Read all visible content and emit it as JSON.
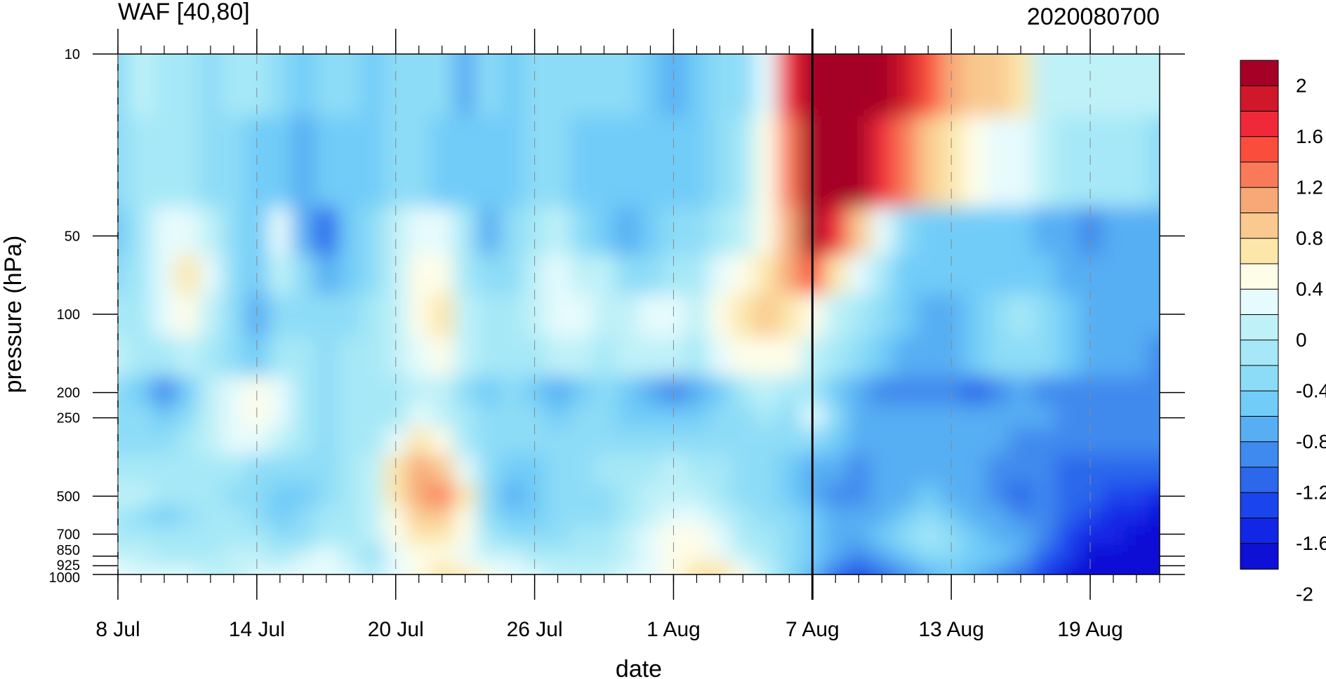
{
  "chart_data": {
    "type": "heatmap",
    "title": "WAF [40,80]",
    "subtitle": "2020080700",
    "xlabel": "date",
    "ylabel": "pressure (hPa)",
    "x_ticks": [
      "8 Jul",
      "14 Jul",
      "20 Jul",
      "26 Jul",
      "1 Aug",
      "7 Aug",
      "13 Aug",
      "19 Aug"
    ],
    "x_range": [
      "8 Jul",
      "22 Aug"
    ],
    "y_ticks": [
      10,
      50,
      100,
      200,
      250,
      500,
      700,
      850,
      925,
      1000
    ],
    "y_range": [
      1000,
      10
    ],
    "y_scale": "log",
    "vertical_line_at": "7 Aug",
    "colorbar": {
      "labels": [
        "2",
        "1.6",
        "1.2",
        "0.8",
        "0.4",
        "0",
        "-0.4",
        "-0.8",
        "-1.2",
        "-1.6",
        "-2"
      ],
      "colors": [
        "#a50026",
        "#d0182a",
        "#f0293a",
        "#fb4d3c",
        "#f97a58",
        "#f7a877",
        "#f9c98f",
        "#fce6aa",
        "#fefde8",
        "#e6fbfd",
        "#bff1f8",
        "#a6e8f7",
        "#8ddcf7",
        "#71ccf8",
        "#57aef3",
        "#3f8aee",
        "#2c67ec",
        "#1b45ec",
        "#1226e6",
        "#0f10d6"
      ]
    },
    "field": {
      "note": "values in data units; rows by pressure level, columns by day",
      "levels": [
        10,
        30,
        50,
        70,
        100,
        150,
        200,
        250,
        300,
        400,
        500,
        600,
        700,
        850,
        925,
        1000
      ],
      "days": [
        "8 Jul",
        "9 Jul",
        "10 Jul",
        "11 Jul",
        "12 Jul",
        "13 Jul",
        "14 Jul",
        "15 Jul",
        "16 Jul",
        "17 Jul",
        "18 Jul",
        "19 Jul",
        "20 Jul",
        "21 Jul",
        "22 Jul",
        "23 Jul",
        "24 Jul",
        "25 Jul",
        "26 Jul",
        "27 Jul",
        "28 Jul",
        "29 Jul",
        "30 Jul",
        "31 Jul",
        "1 Aug",
        "2 Aug",
        "3 Aug",
        "4 Aug",
        "5 Aug",
        "6 Aug",
        "7 Aug",
        "8 Aug",
        "9 Aug",
        "10 Aug",
        "11 Aug",
        "12 Aug",
        "13 Aug",
        "14 Aug",
        "15 Aug",
        "16 Aug",
        "17 Aug",
        "18 Aug",
        "19 Aug",
        "20 Aug",
        "21 Aug",
        "22 Aug"
      ],
      "values": [
        [
          -0.4,
          -0.1,
          -0.3,
          -0.3,
          -0.4,
          -0.3,
          -0.3,
          -0.5,
          -0.6,
          -0.5,
          -0.5,
          -0.6,
          -0.4,
          -0.4,
          -0.5,
          -0.8,
          -0.5,
          -0.6,
          -0.5,
          -0.4,
          -0.4,
          -0.4,
          -0.5,
          -0.7,
          -0.9,
          -0.6,
          -0.5,
          -0.4,
          0.2,
          1.6,
          2.3,
          2.4,
          2.4,
          2.2,
          1.8,
          1.3,
          1.0,
          0.8,
          0.7,
          0.5,
          0.0,
          -0.1,
          -0.1,
          -0.1,
          -0.1,
          -0.1
        ],
        [
          -0.5,
          -0.2,
          -0.2,
          -0.3,
          -0.4,
          -0.5,
          -0.6,
          -0.6,
          -0.9,
          -0.7,
          -0.6,
          -0.6,
          -0.4,
          -0.5,
          -0.6,
          -0.6,
          -0.6,
          -0.7,
          -0.5,
          -0.5,
          -0.6,
          -0.7,
          -0.7,
          -0.7,
          -0.7,
          -0.6,
          -0.4,
          -0.2,
          0.3,
          1.2,
          2.2,
          2.3,
          2.2,
          1.6,
          1.2,
          0.8,
          0.5,
          0.3,
          0.2,
          0.1,
          -0.1,
          -0.2,
          -0.2,
          -0.3,
          -0.3,
          -0.4
        ],
        [
          -0.6,
          -0.2,
          0.1,
          0.2,
          0.0,
          -0.4,
          -0.6,
          0.2,
          -0.8,
          -1.2,
          -0.7,
          -0.5,
          -0.1,
          0.2,
          0.1,
          -0.3,
          -0.8,
          -0.5,
          -0.3,
          0.0,
          -0.4,
          -0.6,
          -0.9,
          -0.7,
          -0.5,
          -0.4,
          -0.3,
          0.0,
          0.4,
          1.0,
          2.2,
          1.5,
          0.8,
          0.2,
          -0.4,
          -0.6,
          -0.7,
          -0.7,
          -0.6,
          -0.7,
          -0.8,
          -0.9,
          -1.0,
          -0.9,
          -0.9,
          -0.9
        ],
        [
          -0.4,
          -0.2,
          0.2,
          0.5,
          0.1,
          -0.4,
          -0.7,
          -0.1,
          -0.5,
          -0.8,
          -0.6,
          -0.4,
          -0.1,
          0.3,
          0.4,
          -0.2,
          -0.5,
          -0.4,
          -0.1,
          0.1,
          0.0,
          -0.1,
          -0.5,
          -0.4,
          -0.3,
          -0.2,
          0.1,
          0.3,
          0.6,
          1.0,
          1.4,
          0.6,
          0.1,
          -0.3,
          -0.6,
          -0.7,
          -0.7,
          -0.6,
          -0.6,
          -0.6,
          -0.7,
          -0.8,
          -0.9,
          -0.9,
          -0.9,
          -0.9
        ],
        [
          -0.2,
          -0.2,
          0.1,
          0.4,
          0.0,
          -0.5,
          -0.9,
          -0.4,
          -0.4,
          -0.5,
          -0.4,
          -0.3,
          -0.1,
          0.3,
          0.6,
          0.0,
          -0.3,
          -0.3,
          0.0,
          0.1,
          0.1,
          0.0,
          -0.1,
          0.1,
          0.2,
          0.0,
          0.3,
          0.6,
          0.7,
          0.6,
          0.3,
          0.0,
          -0.2,
          -0.5,
          -0.7,
          -0.8,
          -0.8,
          -0.6,
          -0.4,
          -0.2,
          -0.5,
          -0.7,
          -0.8,
          -0.9,
          -0.9,
          -0.9
        ],
        [
          -0.1,
          -0.3,
          -0.2,
          0.0,
          -0.2,
          -0.4,
          -0.6,
          -0.3,
          -0.3,
          -0.4,
          -0.3,
          -0.3,
          -0.1,
          0.1,
          0.3,
          -0.1,
          -0.3,
          -0.3,
          -0.2,
          -0.1,
          -0.1,
          -0.2,
          -0.1,
          0.0,
          0.0,
          -0.2,
          0.1,
          0.3,
          0.4,
          0.3,
          0.0,
          -0.2,
          -0.4,
          -0.6,
          -0.8,
          -0.9,
          -0.8,
          -0.7,
          -0.5,
          -0.4,
          -0.5,
          -0.7,
          -0.8,
          -0.9,
          -0.9,
          -1.0
        ],
        [
          -0.4,
          -0.7,
          -1.1,
          -0.6,
          -0.1,
          0.1,
          0.3,
          0.1,
          -0.2,
          -0.5,
          -0.3,
          -0.2,
          -0.2,
          -0.1,
          -0.1,
          -0.4,
          -0.6,
          -0.5,
          -0.6,
          -0.9,
          -0.6,
          -0.5,
          -0.6,
          -0.8,
          -1.1,
          -0.8,
          -0.6,
          -0.3,
          -0.1,
          -0.2,
          -0.2,
          -0.7,
          -0.9,
          -1.0,
          -1.0,
          -1.0,
          -1.1,
          -1.2,
          -1.0,
          -0.9,
          -1.0,
          -1.1,
          -1.1,
          -1.1,
          -1.0,
          -1.1
        ],
        [
          -0.5,
          -0.5,
          -0.6,
          -0.4,
          -0.1,
          0.2,
          0.3,
          0.2,
          -0.2,
          -0.4,
          -0.3,
          -0.2,
          -0.2,
          0.2,
          0.0,
          -0.3,
          -0.5,
          -0.4,
          -0.5,
          -0.6,
          -0.5,
          -0.5,
          -0.6,
          -0.6,
          -0.7,
          -0.6,
          -0.5,
          -0.4,
          -0.3,
          -0.4,
          0.1,
          -0.5,
          -0.8,
          -0.9,
          -0.9,
          -0.9,
          -0.9,
          -0.9,
          -0.9,
          -0.9,
          -0.9,
          -1.0,
          -1.0,
          -1.0,
          -1.0,
          -1.0
        ],
        [
          -0.4,
          -0.4,
          -0.4,
          -0.3,
          -0.1,
          0.1,
          0.1,
          -0.1,
          -0.3,
          -0.4,
          -0.3,
          -0.2,
          0.2,
          0.6,
          0.4,
          -0.2,
          -0.5,
          -0.4,
          -0.4,
          -0.5,
          -0.4,
          -0.4,
          -0.5,
          -0.5,
          -0.5,
          -0.5,
          -0.4,
          -0.4,
          -0.4,
          -0.5,
          -0.5,
          -0.7,
          -0.9,
          -0.9,
          -0.8,
          -0.8,
          -0.8,
          -0.8,
          -0.9,
          -1.0,
          -1.0,
          -1.1,
          -1.1,
          -1.1,
          -1.1,
          -1.1
        ],
        [
          -0.2,
          -0.2,
          -0.2,
          -0.2,
          -0.2,
          -0.3,
          -0.4,
          -0.5,
          -0.5,
          -0.4,
          -0.2,
          -0.1,
          0.5,
          0.9,
          0.8,
          0.2,
          -0.4,
          -0.6,
          -0.6,
          -0.5,
          -0.4,
          -0.3,
          -0.3,
          -0.2,
          -0.1,
          -0.2,
          -0.3,
          -0.4,
          -0.5,
          -0.6,
          -0.8,
          -0.9,
          -1.0,
          -0.9,
          -0.8,
          -0.8,
          -0.8,
          -0.9,
          -1.0,
          -1.1,
          -1.1,
          -1.2,
          -1.2,
          -1.2,
          -1.2,
          -1.2
        ],
        [
          -0.1,
          -0.1,
          -0.2,
          -0.2,
          -0.3,
          -0.5,
          -0.5,
          -0.6,
          -0.6,
          -0.5,
          -0.2,
          -0.1,
          0.6,
          1.0,
          1.2,
          0.6,
          -0.4,
          -0.9,
          -0.6,
          -0.4,
          -0.5,
          -0.5,
          -0.3,
          -0.1,
          0.0,
          -0.1,
          -0.3,
          -0.4,
          -0.5,
          -0.6,
          -0.9,
          -1.0,
          -1.1,
          -0.9,
          -0.8,
          -0.7,
          -0.8,
          -0.9,
          -1.0,
          -1.2,
          -1.1,
          -1.2,
          -1.3,
          -1.4,
          -1.5,
          -1.6
        ],
        [
          -0.3,
          -0.5,
          -0.6,
          -0.4,
          -0.2,
          -0.2,
          -0.5,
          -0.6,
          -0.5,
          -0.3,
          -0.2,
          -0.1,
          0.4,
          0.7,
          0.8,
          0.4,
          -0.5,
          -0.7,
          -0.6,
          -0.5,
          -0.4,
          -0.4,
          -0.2,
          0.0,
          0.2,
          0.1,
          -0.1,
          -0.3,
          -0.4,
          -0.5,
          -0.7,
          -0.8,
          -0.9,
          -0.8,
          -0.7,
          -0.5,
          -0.6,
          -0.8,
          -0.9,
          -1.0,
          -1.1,
          -1.3,
          -1.5,
          -1.6,
          -1.7,
          -1.8
        ],
        [
          -0.2,
          -0.2,
          -0.3,
          -0.3,
          -0.2,
          -0.2,
          -0.3,
          -0.5,
          -0.4,
          -0.2,
          -0.2,
          -0.1,
          0.3,
          0.5,
          0.6,
          0.3,
          -0.3,
          -0.4,
          -0.4,
          -0.4,
          -0.3,
          -0.3,
          -0.1,
          0.2,
          0.3,
          0.3,
          0.1,
          -0.2,
          -0.3,
          -0.5,
          -0.7,
          -0.8,
          -0.9,
          -0.7,
          -0.5,
          -0.3,
          -0.4,
          -0.7,
          -0.8,
          -0.9,
          -1.1,
          -1.4,
          -1.6,
          -1.7,
          -1.8,
          -1.9
        ],
        [
          0.0,
          -0.1,
          -0.2,
          -0.2,
          -0.2,
          -0.1,
          -0.1,
          -0.3,
          -0.1,
          0.1,
          -0.1,
          -0.4,
          0.1,
          0.3,
          0.4,
          0.2,
          -0.1,
          -0.1,
          -0.2,
          -0.3,
          -0.2,
          -0.2,
          0.0,
          0.2,
          0.3,
          0.3,
          0.2,
          0.0,
          -0.2,
          -0.4,
          -0.6,
          -0.9,
          -1.1,
          -0.9,
          -0.7,
          -0.5,
          -0.5,
          -0.6,
          -0.7,
          -0.9,
          -1.2,
          -1.5,
          -1.8,
          -1.9,
          -2.0,
          -2.1
        ],
        [
          0.1,
          0.0,
          0.0,
          0.0,
          -0.1,
          -0.1,
          0.0,
          0.0,
          0.1,
          0.1,
          0.0,
          -0.2,
          0.1,
          0.3,
          0.5,
          0.4,
          0.2,
          0.1,
          0.0,
          -0.1,
          -0.1,
          -0.1,
          0.0,
          0.2,
          0.3,
          0.5,
          0.5,
          0.2,
          -0.1,
          -0.4,
          -0.7,
          -1.1,
          -1.3,
          -1.1,
          -0.9,
          -0.7,
          -0.6,
          -0.7,
          -0.9,
          -1.1,
          -1.4,
          -1.7,
          -1.9,
          -2.0,
          -2.1,
          -2.2
        ],
        [
          0.2,
          0.1,
          0.1,
          0.1,
          0.0,
          0.0,
          0.1,
          0.1,
          0.1,
          0.1,
          0.1,
          0.0,
          0.2,
          0.4,
          0.6,
          0.5,
          0.3,
          0.2,
          0.1,
          0.0,
          0.0,
          0.0,
          0.1,
          0.2,
          0.3,
          0.5,
          0.6,
          0.3,
          0.0,
          -0.4,
          -0.8,
          -1.2,
          -1.4,
          -1.2,
          -1.0,
          -0.8,
          -0.7,
          -0.8,
          -1.0,
          -1.2,
          -1.5,
          -1.8,
          -2.0,
          -2.1,
          -2.2,
          -2.2
        ]
      ]
    }
  }
}
